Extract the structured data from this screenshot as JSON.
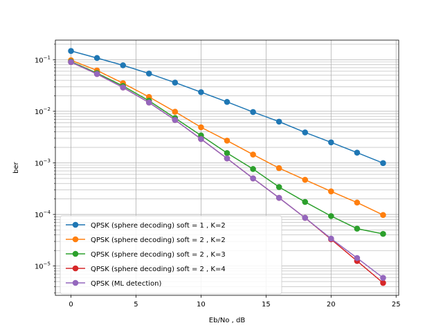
{
  "chart_data": {
    "type": "line",
    "xlabel": "Eb/No , dB",
    "ylabel": "ber",
    "xlim": [
      -1.2,
      25.2
    ],
    "ylim": [
      2.7e-06,
      0.24
    ],
    "yscale": "log",
    "grid": true,
    "x_ticks": [
      0,
      5,
      10,
      15,
      20,
      25
    ],
    "x_tick_labels": [
      "0",
      "5",
      "10",
      "15",
      "20",
      "25"
    ],
    "y_ticks": [
      1e-05,
      0.0001,
      0.001,
      0.01,
      0.1
    ],
    "y_tick_labels": [
      {
        "base": "10",
        "exp": "−5"
      },
      {
        "base": "10",
        "exp": "−4"
      },
      {
        "base": "10",
        "exp": "−3"
      },
      {
        "base": "10",
        "exp": "−2"
      },
      {
        "base": "10",
        "exp": "−1"
      }
    ],
    "legend_position": "lower-left",
    "x": [
      0,
      2,
      4,
      6,
      8,
      10,
      12,
      14,
      16,
      18,
      20,
      22,
      24
    ],
    "series": [
      {
        "name": "QPSK (sphere decoding) soft = 1 , K=2",
        "color": "#1f77b4",
        "values": [
          0.148,
          0.108,
          0.078,
          0.054,
          0.036,
          0.0235,
          0.0152,
          0.0097,
          0.0063,
          0.0039,
          0.0025,
          0.00158,
          0.00099
        ]
      },
      {
        "name": "QPSK (sphere decoding) soft = 2 , K=2",
        "color": "#ff7f0e",
        "values": [
          0.098,
          0.062,
          0.035,
          0.019,
          0.0098,
          0.0049,
          0.0027,
          0.00145,
          0.00079,
          0.00047,
          0.00028,
          0.00017,
          9.75e-05
        ]
      },
      {
        "name": "QPSK (sphere decoding) soft = 2 , K=3",
        "color": "#2ca02c",
        "values": [
          0.092,
          0.055,
          0.031,
          0.016,
          0.0074,
          0.0034,
          0.00155,
          0.00076,
          0.00034,
          0.000175,
          9.3e-05,
          5.3e-05,
          4.2e-05
        ]
      },
      {
        "name": "QPSK (sphere decoding) soft = 2 , K=4",
        "color": "#d62728",
        "values": [
          0.09,
          0.053,
          0.029,
          0.0148,
          0.0068,
          0.0029,
          0.00122,
          0.0005,
          0.00021,
          8.6e-05,
          3.3e-05,
          1.25e-05,
          4.7e-06
        ]
      },
      {
        "name": "QPSK (ML detection)",
        "color": "#9467bd",
        "values": [
          0.09,
          0.053,
          0.029,
          0.0148,
          0.0068,
          0.0029,
          0.00122,
          0.0005,
          0.00021,
          8.6e-05,
          3.4e-05,
          1.43e-05,
          5.9e-06
        ]
      }
    ]
  }
}
